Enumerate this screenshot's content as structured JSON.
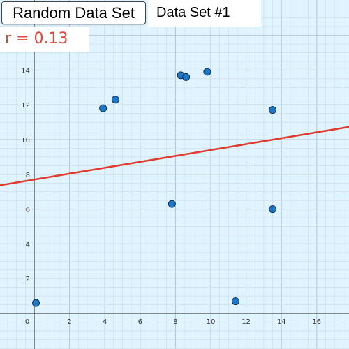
{
  "controls": {
    "random_button_label": "Random Data Set",
    "dataset_label": "Data Set #1",
    "r_label": "r = 0.13"
  },
  "colors": {
    "background": "#dff4ff",
    "point_fill": "#1e78c8",
    "regression_line": "#e03a2c",
    "r_text": "#e2453c"
  },
  "chart_data": {
    "type": "scatter",
    "xlim": [
      -2,
      18
    ],
    "ylim": [
      -2,
      16
    ],
    "grid": true,
    "x_ticks": [
      0,
      2,
      4,
      6,
      8,
      10,
      12,
      14,
      16
    ],
    "y_ticks": [
      2,
      4,
      6,
      8,
      10,
      12,
      14,
      16
    ],
    "points": [
      {
        "x": 0.1,
        "y": 0.6
      },
      {
        "x": 3.9,
        "y": 11.8
      },
      {
        "x": 4.6,
        "y": 12.3
      },
      {
        "x": 7.8,
        "y": 6.3
      },
      {
        "x": 8.3,
        "y": 13.7
      },
      {
        "x": 8.6,
        "y": 13.6
      },
      {
        "x": 9.8,
        "y": 13.9
      },
      {
        "x": 11.4,
        "y": 0.7
      },
      {
        "x": 13.5,
        "y": 11.7
      },
      {
        "x": 13.5,
        "y": 6.0
      }
    ],
    "regression": {
      "slope": 0.17,
      "intercept": 7.7
    }
  }
}
